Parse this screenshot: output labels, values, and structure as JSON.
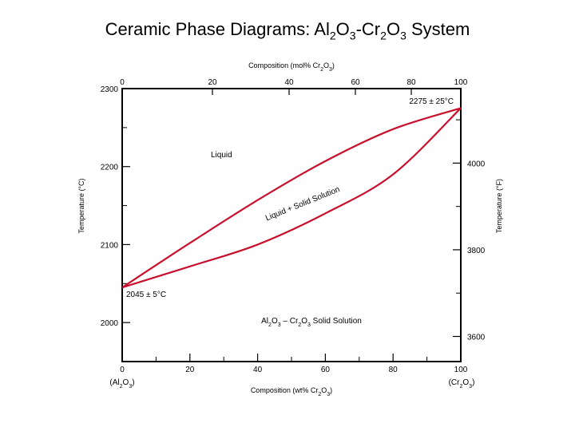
{
  "title": {
    "prefix": "Ceramic Phase Diagrams:  Al",
    "s1": "2",
    "m1": "O",
    "s2": "3",
    "m2": "-Cr",
    "s3": "2",
    "m3": "O",
    "s4": "3",
    "suffix": " System"
  },
  "chart_data": {
    "type": "phase-diagram",
    "top_axis": {
      "label": [
        "Composition (mol% Cr",
        "2",
        "O",
        "3",
        ")"
      ],
      "ticks": [
        0,
        20,
        40,
        60,
        80,
        100
      ]
    },
    "bottom_axis": {
      "label": [
        "Composition (wt% Cr",
        "2",
        "O",
        "3",
        ")"
      ],
      "ticks": [
        0,
        20,
        40,
        60,
        80,
        100
      ],
      "range": [
        0,
        100
      ]
    },
    "left_axis": {
      "label": "Temperature (°C)",
      "ticks": [
        2000,
        2100,
        2200,
        2300
      ],
      "range": [
        1950,
        2300
      ]
    },
    "right_axis": {
      "label": "Temperature (°F)",
      "ticks": [
        3600,
        3800,
        4000
      ]
    },
    "end_labels": {
      "left": [
        "(Al",
        "2",
        "O",
        "3",
        ")"
      ],
      "right": [
        "(Cr",
        "2",
        "O",
        "3",
        ")"
      ]
    },
    "liquidus": [
      [
        0,
        2045
      ],
      [
        20,
        2102
      ],
      [
        40,
        2157
      ],
      [
        60,
        2207
      ],
      [
        80,
        2248
      ],
      [
        100,
        2275
      ]
    ],
    "solidus": [
      [
        0,
        2045
      ],
      [
        20,
        2072
      ],
      [
        40,
        2100
      ],
      [
        60,
        2140
      ],
      [
        80,
        2190
      ],
      [
        100,
        2275
      ]
    ],
    "regions": {
      "liquid": "Liquid",
      "two_phase": "Liquid + Solid Solution",
      "solid": [
        "Al",
        "2",
        "O",
        "3",
        " – Cr",
        "2",
        "O",
        "3",
        " Solid Solution"
      ]
    },
    "annotations": {
      "max_point": "2275 ± 25°C",
      "min_point": "2045 ± 5°C"
    },
    "curve_color": "#c8102e"
  }
}
